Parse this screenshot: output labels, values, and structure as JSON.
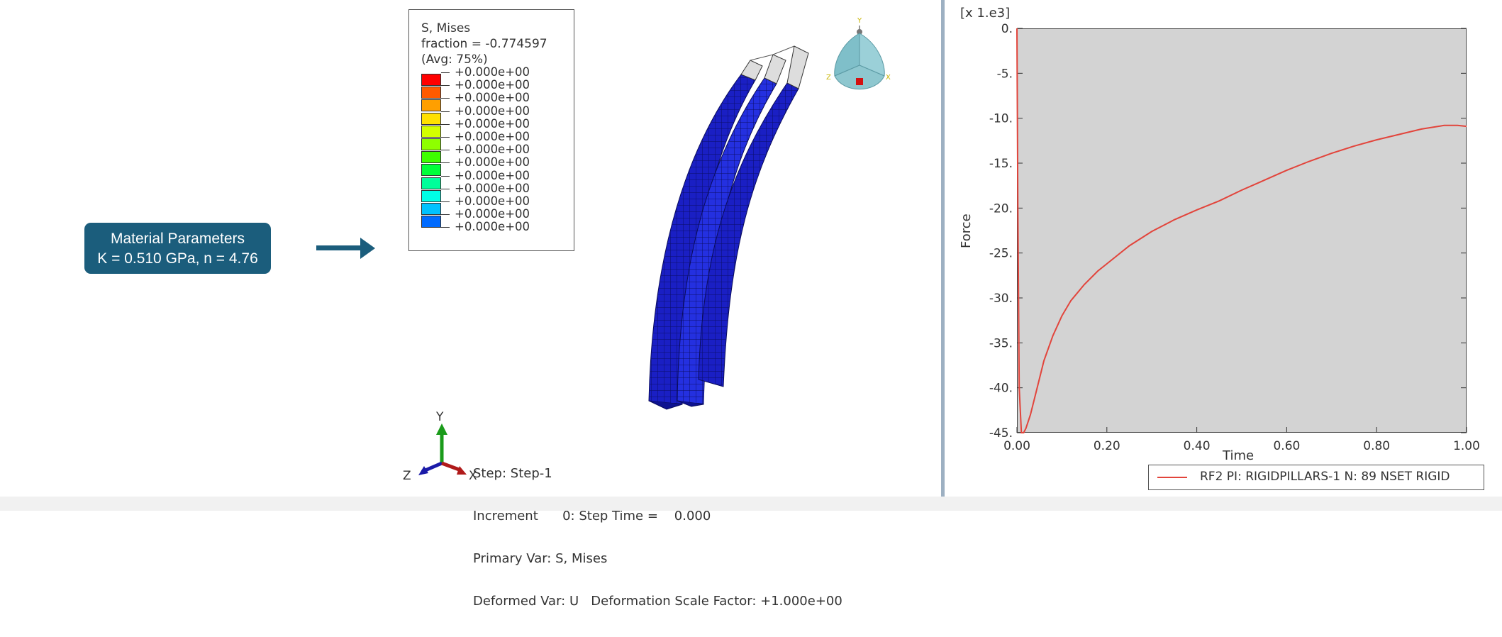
{
  "material": {
    "title": "Material Parameters",
    "values": "K = 0.510 GPa, n = 4.76",
    "color": "#1b5d7c"
  },
  "legend": {
    "title": "S, Mises",
    "fraction": "fraction = -0.774597",
    "avg": "(Avg: 75%)",
    "levels": [
      "+0.000e+00",
      "+0.000e+00",
      "+0.000e+00",
      "+0.000e+00",
      "+0.000e+00",
      "+0.000e+00",
      "+0.000e+00",
      "+0.000e+00",
      "+0.000e+00",
      "+0.000e+00",
      "+0.000e+00",
      "+0.000e+00",
      "+0.000e+00"
    ],
    "colors": [
      "#ff0000",
      "#ff5a00",
      "#ff9f00",
      "#ffe000",
      "#d4ff00",
      "#8eff00",
      "#3eff00",
      "#00ff3a",
      "#00ff9a",
      "#00ffe6",
      "#00c2ff",
      "#006bff",
      "#0000ff"
    ]
  },
  "triad": {
    "y": "Y",
    "z": "Z",
    "x": "X"
  },
  "view_cube": {
    "y": "Y",
    "z": "Z",
    "x": "X"
  },
  "step_info": {
    "step": "Step: Step-1",
    "increment": "Increment      0: Step Time =    0.000",
    "primary": "Primary Var: S, Mises",
    "deformed": "Deformed Var: U   Deformation Scale Factor: +1.000e+00"
  },
  "chart_data": {
    "type": "line",
    "multiplier_label": "[x 1.e3]",
    "xlabel": "Time",
    "ylabel": "Force",
    "xlim": [
      0,
      1.0
    ],
    "ylim": [
      -45,
      0
    ],
    "x_ticks": [
      "0.00",
      "0.20",
      "0.40",
      "0.60",
      "0.80",
      "1.00"
    ],
    "y_ticks": [
      "0.",
      "-5.",
      "-10.",
      "-15.",
      "-20.",
      "-25.",
      "-30.",
      "-35.",
      "-40.",
      "-45."
    ],
    "series": [
      {
        "name": "RF2 PI: RIGIDPILLARS-1 N: 89 NSET RIGID",
        "color": "#e2443b",
        "x": [
          0.0,
          0.002,
          0.005,
          0.01,
          0.015,
          0.02,
          0.03,
          0.04,
          0.05,
          0.06,
          0.08,
          0.1,
          0.12,
          0.15,
          0.18,
          0.2,
          0.25,
          0.3,
          0.35,
          0.4,
          0.45,
          0.5,
          0.55,
          0.6,
          0.65,
          0.7,
          0.75,
          0.8,
          0.85,
          0.9,
          0.95,
          0.98,
          1.0
        ],
        "y": [
          0.0,
          -20.0,
          -40.0,
          -45.0,
          -45.0,
          -44.5,
          -43.0,
          -41.0,
          -39.0,
          -37.0,
          -34.2,
          -32.0,
          -30.3,
          -28.5,
          -27.0,
          -26.2,
          -24.2,
          -22.6,
          -21.3,
          -20.2,
          -19.2,
          -18.0,
          -16.9,
          -15.8,
          -14.8,
          -13.9,
          -13.1,
          -12.4,
          -11.8,
          -11.2,
          -10.8,
          -10.8,
          -10.9
        ]
      }
    ]
  }
}
